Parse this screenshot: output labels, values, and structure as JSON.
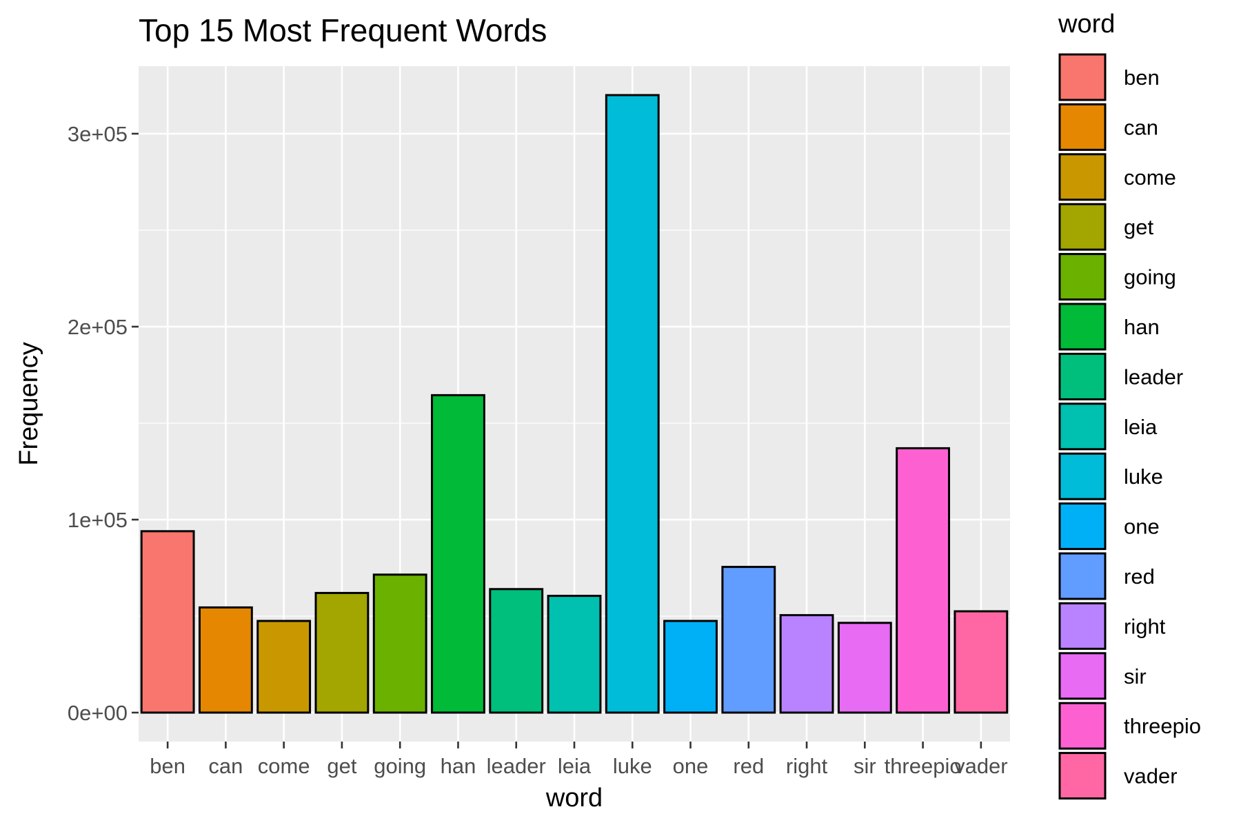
{
  "chart_data": {
    "type": "bar",
    "title": "Top 15 Most Frequent Words",
    "xlabel": "word",
    "ylabel": "Frequency",
    "categories": [
      "ben",
      "can",
      "come",
      "get",
      "going",
      "han",
      "leader",
      "leia",
      "luke",
      "one",
      "red",
      "right",
      "sir",
      "threepio",
      "vader"
    ],
    "values": [
      94000,
      54500,
      47500,
      62000,
      71500,
      164500,
      64000,
      60500,
      320000,
      47500,
      75500,
      50500,
      46500,
      137000,
      52500
    ],
    "colors": [
      "#F8766D",
      "#E58700",
      "#C99800",
      "#A3A500",
      "#6BB100",
      "#00BA38",
      "#00BF7D",
      "#00C0AF",
      "#00BCD8",
      "#00B0F6",
      "#619CFF",
      "#B983FF",
      "#E76BF3",
      "#FD61D1",
      "#FF67A4"
    ],
    "ylim": [
      -15000,
      335000
    ],
    "yticks": [
      0,
      100000,
      200000,
      300000
    ],
    "ytick_labels": [
      "0e+00",
      "1e+05",
      "2e+05",
      "3e+05"
    ],
    "grid": true,
    "legend": {
      "title": "word",
      "placement": "right"
    }
  }
}
